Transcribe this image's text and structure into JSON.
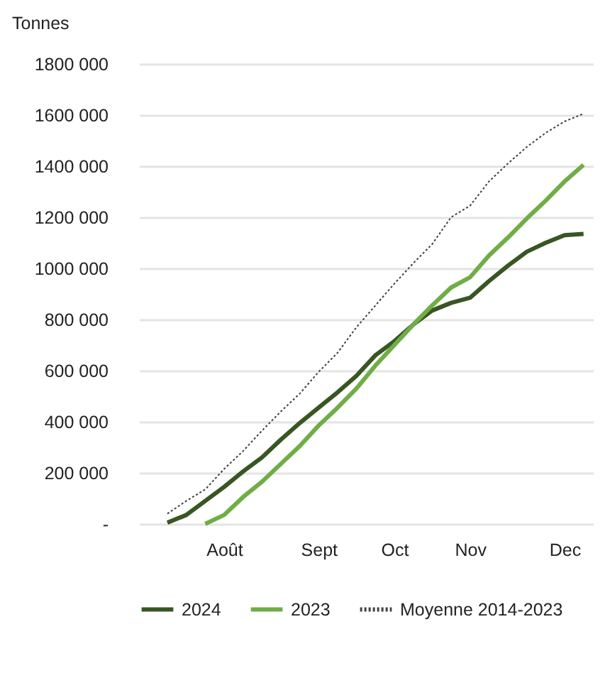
{
  "chart_data": {
    "type": "line",
    "ylabel": "Tonnes",
    "categories": [
      null,
      null,
      null,
      "Août",
      null,
      null,
      null,
      null,
      "Sept",
      null,
      null,
      null,
      "Oct",
      null,
      null,
      null,
      "Nov",
      null,
      null,
      null,
      null,
      "Dec",
      null
    ],
    "series": [
      {
        "name": "2024",
        "color": "#375623",
        "line_style": "solid",
        "values": [
          5000,
          35000,
          90000,
          145000,
          205000,
          260000,
          330000,
          395000,
          455000,
          515000,
          580000,
          660000,
          715000,
          780000,
          835000,
          865000,
          885000,
          950000,
          1010000,
          1065000,
          1100000,
          1130000,
          1135000
        ]
      },
      {
        "name": "2023",
        "color": "#70ad47",
        "line_style": "solid",
        "values": [
          null,
          null,
          0,
          35000,
          105000,
          165000,
          235000,
          305000,
          385000,
          455000,
          530000,
          620000,
          700000,
          780000,
          855000,
          925000,
          965000,
          1050000,
          1120000,
          1195000,
          1265000,
          1340000,
          1405000
        ]
      },
      {
        "name": "Moyenne 2014-2023",
        "color": "#404040",
        "line_style": "dotted",
        "values": [
          40000,
          90000,
          135000,
          215000,
          285000,
          365000,
          440000,
          510000,
          595000,
          670000,
          770000,
          855000,
          940000,
          1020000,
          1095000,
          1200000,
          1245000,
          1340000,
          1410000,
          1475000,
          1530000,
          1575000,
          1605000
        ]
      }
    ],
    "ylim": [
      0,
      1800000
    ],
    "yticks": [
      {
        "value": 0,
        "label": "-"
      },
      {
        "value": 200000,
        "label": "200 000"
      },
      {
        "value": 400000,
        "label": "400 000"
      },
      {
        "value": 600000,
        "label": "600 000"
      },
      {
        "value": 800000,
        "label": "800 000"
      },
      {
        "value": 1000000,
        "label": "1000 000"
      },
      {
        "value": 1200000,
        "label": "1200 000"
      },
      {
        "value": 1400000,
        "label": "1400 000"
      },
      {
        "value": 1600000,
        "label": "1600 000"
      },
      {
        "value": 1800000,
        "label": "1800 000"
      }
    ],
    "grid": "y",
    "legend": "bottom",
    "marker": "none"
  }
}
